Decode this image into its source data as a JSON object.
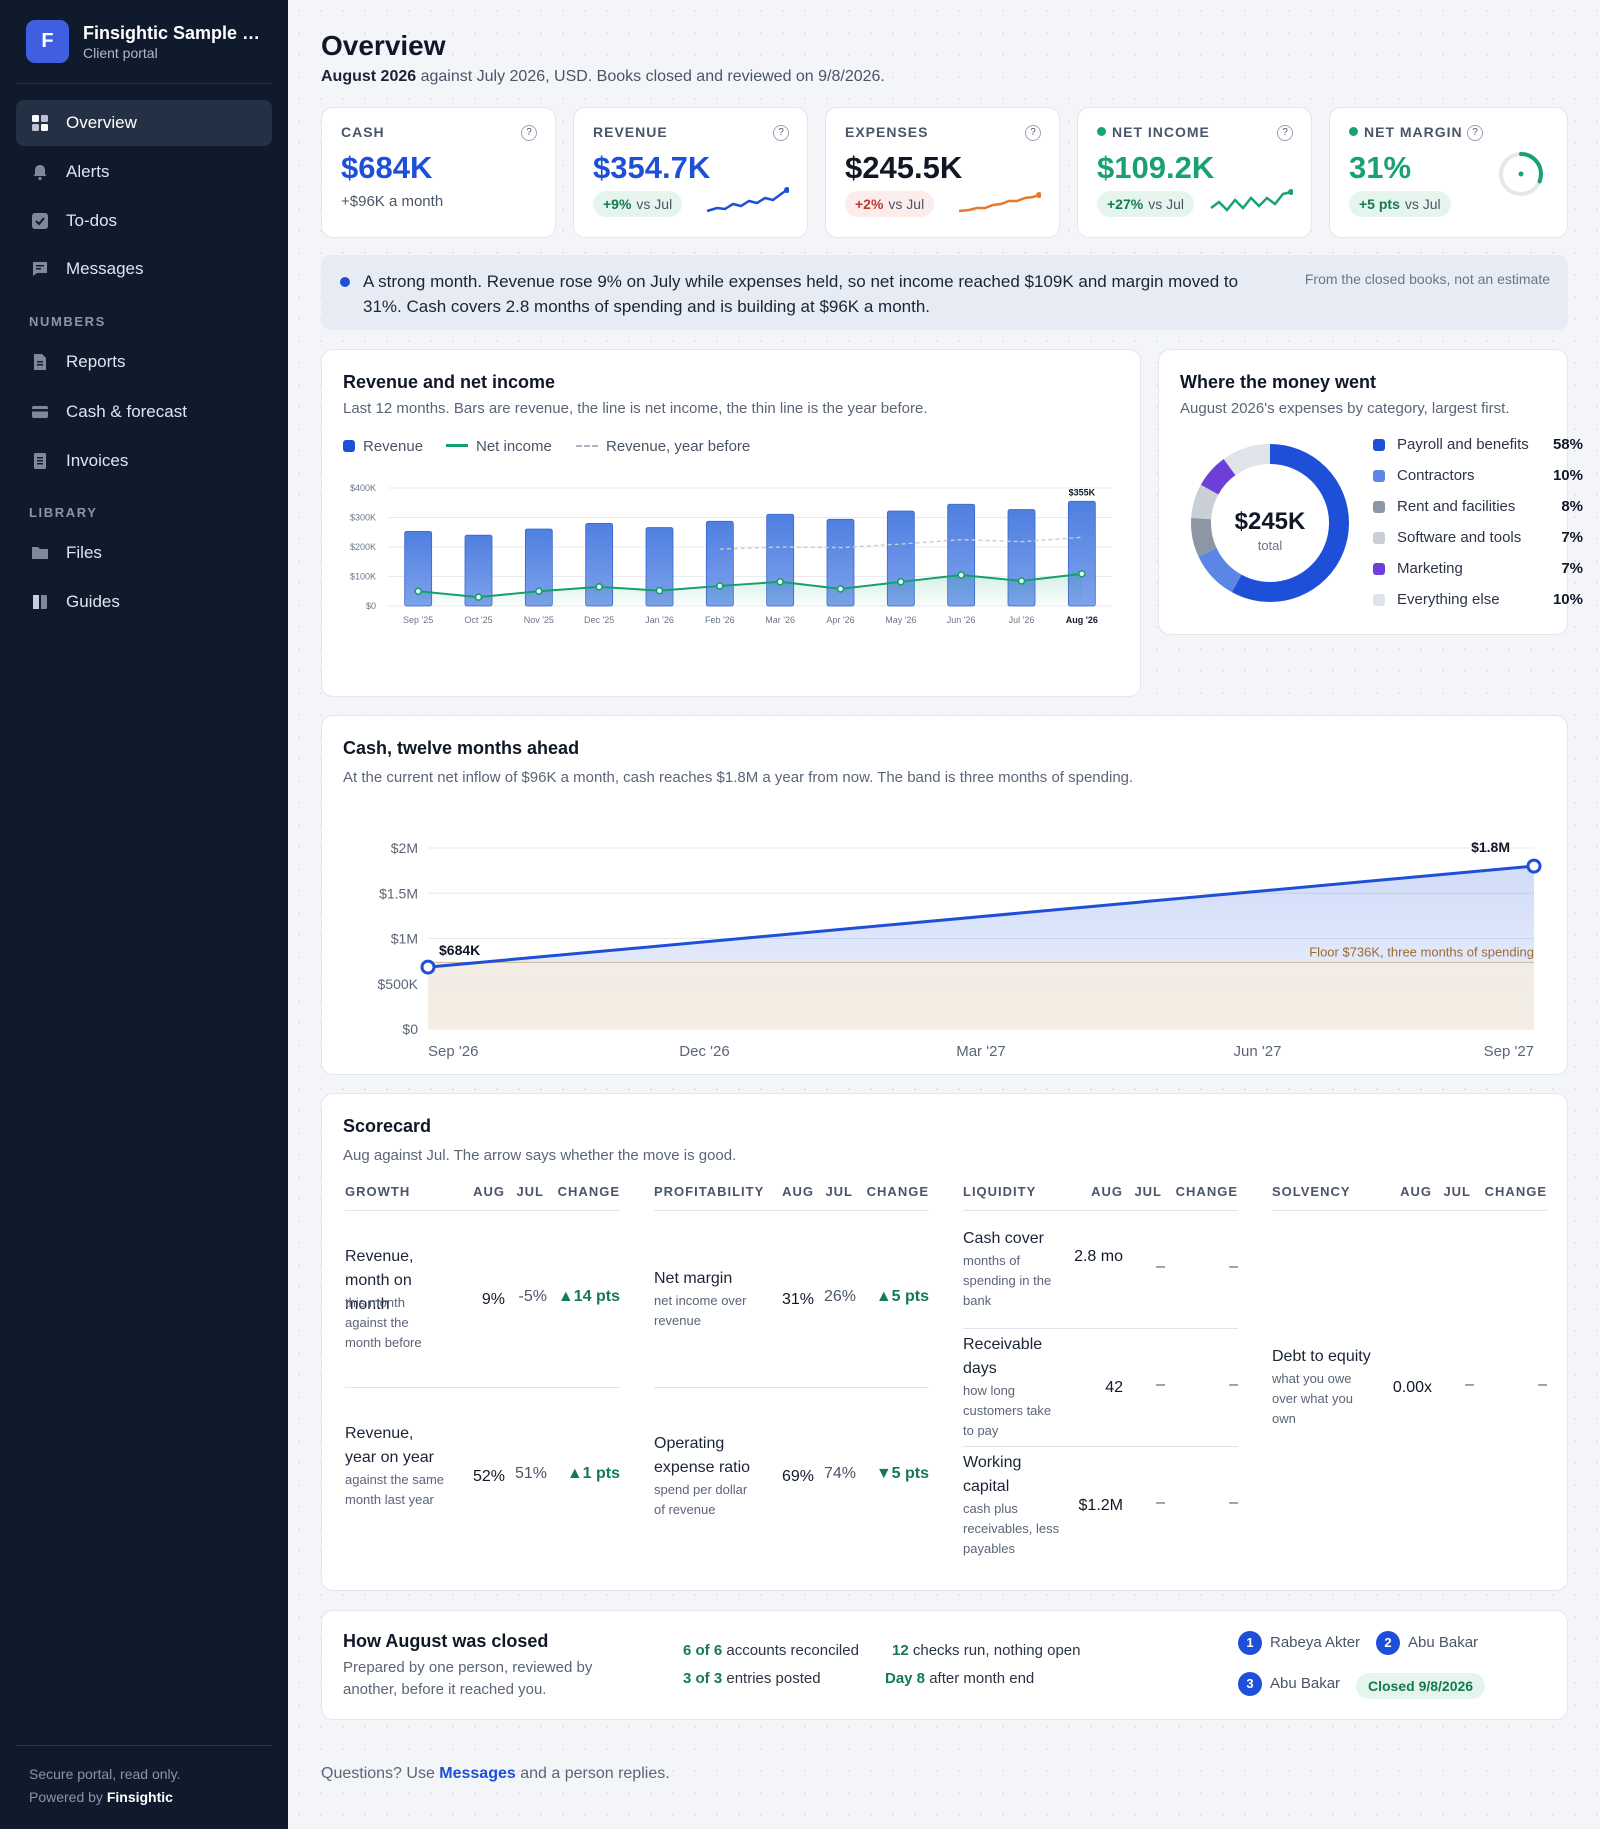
{
  "sidebar": {
    "logo_letter": "F",
    "org_name": "Finsightic Sample C...",
    "org_sub": "Client portal",
    "nav": [
      {
        "label": "Overview",
        "icon": "grid-icon"
      },
      {
        "label": "Alerts",
        "icon": "bell-icon"
      },
      {
        "label": "To-dos",
        "icon": "checkbox-icon"
      },
      {
        "label": "Messages",
        "icon": "message-icon"
      }
    ],
    "section_numbers": "NUMBERS",
    "numbers": [
      {
        "label": "Reports",
        "icon": "document-icon"
      },
      {
        "label": "Cash & forecast",
        "icon": "card-icon"
      },
      {
        "label": "Invoices",
        "icon": "invoice-icon"
      }
    ],
    "section_library": "LIBRARY",
    "library": [
      {
        "label": "Files",
        "icon": "folder-icon"
      },
      {
        "label": "Guides",
        "icon": "book-icon"
      }
    ],
    "footer_line1": "Secure portal, read only.",
    "footer_powered": "Powered by",
    "footer_brand": "Finsightic"
  },
  "header": {
    "title": "Overview",
    "period": "August 2026",
    "subtitle_rest": " against July 2026, USD. Books closed and reviewed on 9/8/2026."
  },
  "kpis": {
    "cash": {
      "label": "CASH",
      "value": "$684K",
      "note": "+$96K a month"
    },
    "revenue": {
      "label": "REVENUE",
      "value": "$354.7K",
      "delta": "+9%",
      "vs": "vs Jul"
    },
    "expenses": {
      "label": "EXPENSES",
      "value": "$245.5K",
      "delta": "+2%",
      "vs": "vs Jul"
    },
    "net_income": {
      "label": "NET INCOME",
      "value": "$109.2K",
      "delta": "+27%",
      "vs": "vs Jul"
    },
    "net_margin": {
      "label": "NET MARGIN",
      "value": "31%",
      "delta": "+5 pts",
      "vs": "vs Jul",
      "gauge_fraction": 0.31
    },
    "help": "?"
  },
  "banner": {
    "text": "A strong month. Revenue rose 9% on July while expenses held, so net income reached $109K and margin moved to 31%. Cash covers 2.8 months of spending and is building at $96K a month.",
    "side": "From the closed books, not an estimate"
  },
  "revenue_chart": {
    "title": "Revenue and net income",
    "subtitle": "Last 12 months. Bars are revenue, the line is net income, the thin line is the year before.",
    "legend": [
      "Revenue",
      "Net income",
      "Revenue, year before"
    ]
  },
  "expense_breakdown": {
    "title": "Where the money went",
    "subtitle": "August 2026's expenses by category, largest first.",
    "total_value": "$245K",
    "total_label": "total",
    "items": [
      {
        "name": "Payroll and benefits",
        "pct": "58%",
        "share": 58,
        "color": "#1e4fd8"
      },
      {
        "name": "Contractors",
        "pct": "10%",
        "share": 10,
        "color": "#5b86e5"
      },
      {
        "name": "Rent and facilities",
        "pct": "8%",
        "share": 8,
        "color": "#8d96a5"
      },
      {
        "name": "Software and tools",
        "pct": "7%",
        "share": 7,
        "color": "#c9ced7"
      },
      {
        "name": "Marketing",
        "pct": "7%",
        "share": 7,
        "color": "#6d3fd8"
      },
      {
        "name": "Everything else",
        "pct": "10%",
        "share": 10,
        "color": "#dfe3ea"
      }
    ]
  },
  "cash_chart": {
    "title": "Cash, twelve months ahead",
    "subtitle": "At the current net inflow of $96K a month, cash reaches $1.8M a year from now. The band is three months of spending.",
    "floor_label": "Floor $736K, three months of spending"
  },
  "chart_data": [
    {
      "type": "bar",
      "categories": [
        "Sep '25",
        "Oct '25",
        "Nov '25",
        "Dec '25",
        "Jan '26",
        "Feb '26",
        "Mar '26",
        "Apr '26",
        "May '26",
        "Jun '26",
        "Jul '26",
        "Aug '26"
      ],
      "series": [
        {
          "name": "Revenue",
          "type": "bar",
          "values": [
            253,
            240,
            261,
            280,
            266,
            287,
            311,
            294,
            322,
            345,
            327,
            355
          ]
        },
        {
          "name": "Net income",
          "type": "line",
          "values": [
            50,
            30,
            50,
            65,
            52,
            68,
            82,
            58,
            82,
            105,
            85,
            109
          ]
        },
        {
          "name": "Revenue, year before",
          "type": "line",
          "values": [
            null,
            null,
            null,
            null,
            null,
            193,
            200,
            198,
            210,
            225,
            218,
            233
          ]
        }
      ],
      "yticks": [
        "$0",
        "$100K",
        "$200K",
        "$300K",
        "$400K"
      ],
      "ylim": [
        0,
        400
      ],
      "annotation": "$355K",
      "highlight_category": "Aug '26",
      "grid": true
    },
    {
      "type": "area",
      "x": [
        "Sep '26",
        "Sep '27"
      ],
      "xticks": [
        "Sep '26",
        "Dec '26",
        "Mar '27",
        "Jun '27",
        "Sep '27"
      ],
      "series": [
        {
          "name": "Cash",
          "values": [
            684,
            1800
          ]
        }
      ],
      "floor": 736,
      "start_label": "$684K",
      "end_label": "$1.8M",
      "yticks": [
        "$0",
        "$500K",
        "$1M",
        "$1.5M",
        "$2M"
      ],
      "ylim": [
        0,
        2000
      ],
      "grid": true
    },
    {
      "type": "pie",
      "categories": [
        "Payroll and benefits",
        "Contractors",
        "Rent and facilities",
        "Software and tools",
        "Marketing",
        "Everything else"
      ],
      "values": [
        58,
        10,
        8,
        7,
        7,
        10
      ]
    }
  ],
  "scorecard": {
    "title": "Scorecard",
    "subtitle": "Aug against Jul. The arrow says whether the move is good.",
    "col_aug": "AUG",
    "col_jul": "JUL",
    "col_change": "CHANGE",
    "groups": [
      {
        "name": "GROWTH",
        "rows": [
          {
            "name": "Revenue, month on month",
            "desc": "this month against the month before",
            "aug": "9%",
            "jul": "-5%",
            "change": "▲14 pts"
          },
          {
            "name": "Revenue, year on year",
            "desc": "against the same month last year",
            "aug": "52%",
            "jul": "51%",
            "change": "▲1 pts"
          }
        ]
      },
      {
        "name": "PROFITABILITY",
        "rows": [
          {
            "name": "Net margin",
            "desc": "net income over revenue",
            "aug": "31%",
            "jul": "26%",
            "change": "▲5 pts"
          },
          {
            "name": "Operating expense ratio",
            "desc": "spend per dollar of revenue",
            "aug": "69%",
            "jul": "74%",
            "change": "▼5 pts"
          }
        ]
      },
      {
        "name": "LIQUIDITY",
        "rows": [
          {
            "name": "Cash cover",
            "desc": "months of spending in the bank",
            "aug": "2.8 mo",
            "jul": "–",
            "change": "–"
          },
          {
            "name": "Receivable days",
            "desc": "how long customers take to pay",
            "aug": "42",
            "jul": "–",
            "change": "–"
          },
          {
            "name": "Working capital",
            "desc": "cash plus receivables, less payables",
            "aug": "$1.2M",
            "jul": "–",
            "change": "–"
          }
        ]
      },
      {
        "name": "SOLVENCY",
        "rows": [
          {
            "name": "Debt to equity",
            "desc": "what you owe over what you own",
            "aug": "0.00x",
            "jul": "–",
            "change": "–"
          }
        ]
      }
    ]
  },
  "close": {
    "title": "How August was closed",
    "subtitle": "Prepared by one person, reviewed by another, before it reached you.",
    "stats": [
      {
        "strong": "6 of 6",
        "rest": " accounts reconciled"
      },
      {
        "strong": "12",
        "rest": " checks run, nothing open"
      },
      {
        "strong": "3 of 3",
        "rest": " entries posted"
      },
      {
        "strong": "Day 8",
        "rest": " after month end"
      }
    ],
    "steps": [
      {
        "n": "1",
        "name": "Rabeya Akter"
      },
      {
        "n": "2",
        "name": "Abu Bakar"
      },
      {
        "n": "3",
        "name": "Abu Bakar"
      }
    ],
    "closed": "Closed 9/8/2026"
  },
  "footer": {
    "pre": "Questions? Use ",
    "link": "Messages",
    "post": " and a person replies."
  },
  "colors": {
    "accent": "#1e4fd8",
    "positive": "#19a271",
    "negative": "#c0392b",
    "sidebar": "#0f1b2d",
    "orange": "#e8782a"
  }
}
